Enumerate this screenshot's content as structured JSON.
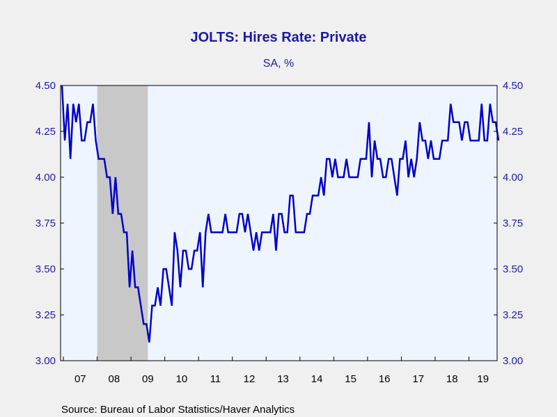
{
  "colors": {
    "background": "#f0f0f0",
    "plot_background": "#eef5ff",
    "recession_shade": "#c8c8c8",
    "line": "#0000c8",
    "text": "#1a1aa6"
  },
  "source": "Source:  Bureau of Labor Statistics/Haver Analytics",
  "chart_data": {
    "type": "line",
    "title": "JOLTS: Hires Rate: Private",
    "subtitle": "SA, %",
    "ylim": [
      3.0,
      4.5
    ],
    "y_ticks": [
      "3.00",
      "3.25",
      "3.50",
      "3.75",
      "4.00",
      "4.25",
      "4.50"
    ],
    "y_tick_values": [
      3.0,
      3.25,
      3.5,
      3.75,
      4.0,
      4.25,
      4.5
    ],
    "x_tick_labels": [
      "07",
      "08",
      "09",
      "10",
      "11",
      "12",
      "13",
      "14",
      "15",
      "16",
      "17",
      "18",
      "19"
    ],
    "x_range": [
      "2006-12",
      "2019-10"
    ],
    "grid": false,
    "recession_periods": [
      {
        "start": "2008-01",
        "end": "2009-06"
      }
    ],
    "series": [
      {
        "start": "2006-12",
        "frequency": "monthly",
        "values": [
          4.5,
          4.2,
          4.4,
          4.1,
          4.4,
          4.3,
          4.4,
          4.2,
          4.2,
          4.3,
          4.3,
          4.4,
          4.2,
          4.1,
          4.1,
          4.1,
          4.0,
          4.0,
          3.8,
          4.0,
          3.8,
          3.8,
          3.7,
          3.7,
          3.4,
          3.6,
          3.4,
          3.4,
          3.3,
          3.2,
          3.2,
          3.1,
          3.3,
          3.3,
          3.4,
          3.3,
          3.5,
          3.5,
          3.4,
          3.3,
          3.7,
          3.6,
          3.4,
          3.6,
          3.6,
          3.5,
          3.5,
          3.6,
          3.6,
          3.7,
          3.4,
          3.7,
          3.8,
          3.7,
          3.7,
          3.7,
          3.7,
          3.7,
          3.8,
          3.7,
          3.7,
          3.7,
          3.7,
          3.8,
          3.8,
          3.7,
          3.8,
          3.7,
          3.6,
          3.7,
          3.6,
          3.7,
          3.7,
          3.7,
          3.7,
          3.8,
          3.6,
          3.8,
          3.8,
          3.7,
          3.7,
          3.9,
          3.9,
          3.7,
          3.7,
          3.7,
          3.7,
          3.8,
          3.8,
          3.9,
          3.9,
          3.9,
          4.0,
          3.9,
          4.1,
          4.1,
          4.0,
          4.1,
          4.0,
          4.0,
          4.0,
          4.1,
          4.0,
          4.0,
          4.0,
          4.0,
          4.1,
          4.1,
          4.1,
          4.3,
          4.0,
          4.2,
          4.1,
          4.1,
          4.0,
          4.0,
          4.1,
          4.1,
          4.0,
          3.9,
          4.1,
          4.1,
          4.2,
          4.0,
          4.1,
          4.0,
          4.1,
          4.3,
          4.2,
          4.2,
          4.1,
          4.2,
          4.1,
          4.1,
          4.1,
          4.2,
          4.2,
          4.2,
          4.4,
          4.3,
          4.3,
          4.3,
          4.2,
          4.3,
          4.3,
          4.2,
          4.2,
          4.2,
          4.2,
          4.4,
          4.2,
          4.2,
          4.4,
          4.3,
          4.3,
          4.2
        ]
      }
    ]
  }
}
